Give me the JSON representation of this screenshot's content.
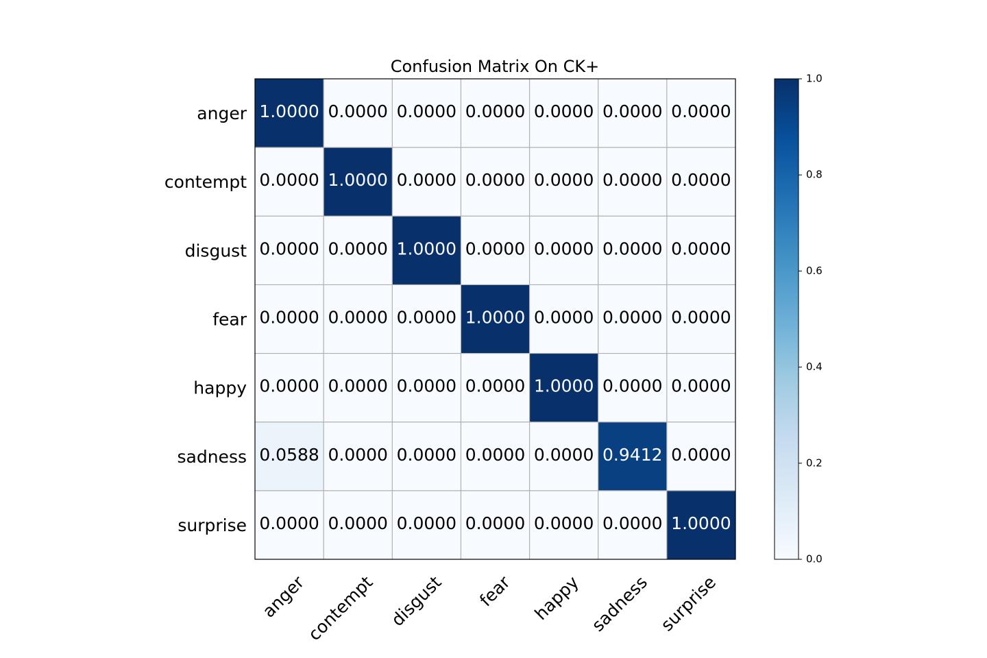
{
  "chart_data": {
    "type": "heatmap",
    "title": "Confusion Matrix On CK+",
    "xlabel": "",
    "ylabel": "",
    "row_labels": [
      "anger",
      "contempt",
      "disgust",
      "fear",
      "happy",
      "sadness",
      "surprise"
    ],
    "col_labels": [
      "anger",
      "contempt",
      "disgust",
      "fear",
      "happy",
      "sadness",
      "surprise"
    ],
    "values": [
      [
        1.0,
        0.0,
        0.0,
        0.0,
        0.0,
        0.0,
        0.0
      ],
      [
        0.0,
        1.0,
        0.0,
        0.0,
        0.0,
        0.0,
        0.0
      ],
      [
        0.0,
        0.0,
        1.0,
        0.0,
        0.0,
        0.0,
        0.0
      ],
      [
        0.0,
        0.0,
        0.0,
        1.0,
        0.0,
        0.0,
        0.0
      ],
      [
        0.0,
        0.0,
        0.0,
        0.0,
        1.0,
        0.0,
        0.0
      ],
      [
        0.0588,
        0.0,
        0.0,
        0.0,
        0.0,
        0.9412,
        0.0
      ],
      [
        0.0,
        0.0,
        0.0,
        0.0,
        0.0,
        0.0,
        1.0
      ]
    ],
    "cell_labels": [
      [
        "1.0000",
        "0.0000",
        "0.0000",
        "0.0000",
        "0.0000",
        "0.0000",
        "0.0000"
      ],
      [
        "0.0000",
        "1.0000",
        "0.0000",
        "0.0000",
        "0.0000",
        "0.0000",
        "0.0000"
      ],
      [
        "0.0000",
        "0.0000",
        "1.0000",
        "0.0000",
        "0.0000",
        "0.0000",
        "0.0000"
      ],
      [
        "0.0000",
        "0.0000",
        "0.0000",
        "1.0000",
        "0.0000",
        "0.0000",
        "0.0000"
      ],
      [
        "0.0000",
        "0.0000",
        "0.0000",
        "0.0000",
        "1.0000",
        "0.0000",
        "0.0000"
      ],
      [
        "0.0588",
        "0.0000",
        "0.0000",
        "0.0000",
        "0.0000",
        "0.9412",
        "0.0000"
      ],
      [
        "0.0000",
        "0.0000",
        "0.0000",
        "0.0000",
        "0.0000",
        "0.0000",
        "1.0000"
      ]
    ],
    "colormap": "Blues",
    "colorbar": {
      "range": [
        0.0,
        1.0
      ],
      "ticks": [
        0.0,
        0.2,
        0.4,
        0.6,
        0.8,
        1.0
      ],
      "tick_labels": [
        "0.0",
        "0.2",
        "0.4",
        "0.6",
        "0.8",
        "1.0"
      ],
      "position": "right"
    },
    "grid": true,
    "x_tick_rotation_deg": 45,
    "colors": {
      "low": "#f7fbff",
      "high": "#08306b",
      "grid": "#b0b0b0",
      "text_dark": "#000000",
      "text_light": "#ffffff"
    }
  }
}
